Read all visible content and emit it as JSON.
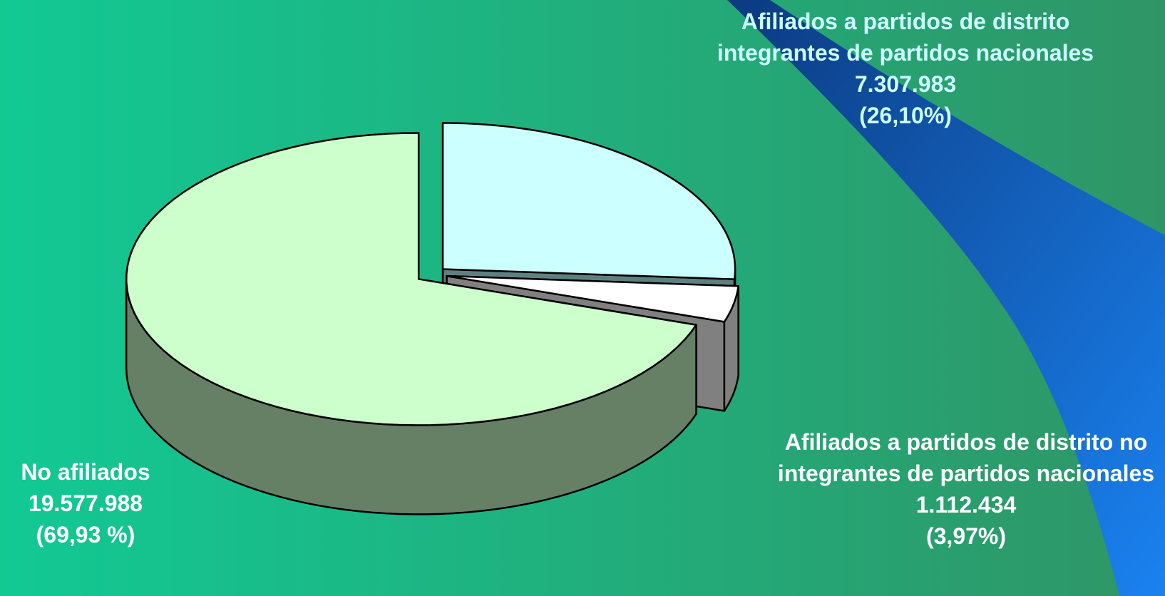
{
  "chart_data": {
    "type": "pie",
    "categories": [
      "No afiliados",
      "Afiliados a partidos de distrito integrantes de partidos nacionales",
      "Afiliados a partidos de distrito no integrantes de partidos nacionales"
    ],
    "values": [
      19577988,
      7307983,
      1112434
    ],
    "value_labels": [
      "19.577.988",
      "7.307.983",
      "1.112.434"
    ],
    "percents": [
      69.93,
      26.1,
      3.97
    ],
    "percent_labels": [
      "(69,93 %)",
      "(26,10%)",
      "(3,97%)"
    ],
    "colors": [
      "#ccffcc",
      "#ccffff",
      "#ffffff"
    ],
    "side_colors": [
      "#668066",
      "#5f8080",
      "#808080"
    ]
  }
}
